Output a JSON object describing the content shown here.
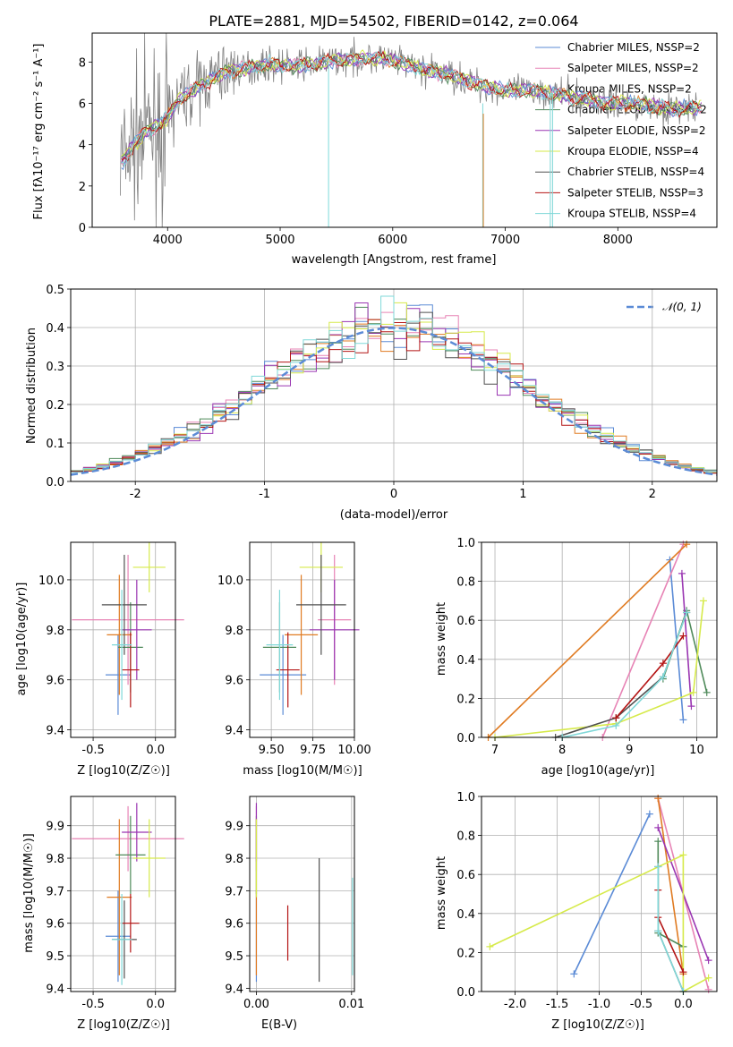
{
  "colors": [
    "#5b8bd6",
    "#e783b5",
    "#e07b22",
    "#4f8a5a",
    "#9a36b2",
    "#d6ea4a",
    "#505050",
    "#b41414",
    "#7fd8d8"
  ],
  "panel1": {
    "title": "PLATE=2881, MJD=54502, FIBERID=0142, z=0.064",
    "xlabel": "wavelength [Angstrom, rest frame]",
    "ylabel": "Flux [fλ10⁻¹⁷ erg cm⁻² s⁻¹ A⁻¹]",
    "xlim": [
      3330,
      8880
    ],
    "ylim": [
      0,
      9.4
    ],
    "xticks": [
      4000,
      5000,
      6000,
      7000,
      8000
    ],
    "yticks": [
      0,
      2,
      4,
      6,
      8
    ],
    "legend": [
      "Chabrier MILES, NSSP=2",
      "Salpeter MILES, NSSP=2",
      "Kroupa MILES, NSSP=2",
      "Chabrier ELODIE, NSSP=2",
      "Salpeter ELODIE, NSSP=2",
      "Kroupa ELODIE, NSSP=4",
      "Chabrier STELIB, NSSP=4",
      "Salpeter STELIB, NSSP=3",
      "Kroupa STELIB, NSSP=4"
    ]
  },
  "panel2": {
    "xlabel": "(data-model)/error",
    "ylabel": "Normed distribution",
    "xlim": [
      -2.5,
      2.5
    ],
    "ylim": [
      0,
      0.5
    ],
    "xticks": [
      -2,
      -1,
      0,
      1,
      2
    ],
    "yticks": [
      0.0,
      0.1,
      0.2,
      0.3,
      0.4,
      0.5
    ],
    "legend": "𝒩(0, 1)"
  },
  "panel3": {
    "xlabel": "Z [log10(Z/Z☉)]",
    "ylabel": "age [log10(age/yr)]",
    "xlim": [
      -0.68,
      0.16
    ],
    "ylim": [
      9.37,
      10.15
    ],
    "xticks": [
      -0.5,
      0.0
    ],
    "yticks": [
      9.4,
      9.6,
      9.8,
      10.0
    ]
  },
  "panel4": {
    "xlabel": "mass [log10(M/M☉)]",
    "xlim": [
      9.37,
      10.0
    ],
    "ylim": [
      9.37,
      10.15
    ],
    "xticks": [
      9.5,
      9.75,
      10.0
    ],
    "yticks": [
      9.4,
      9.6,
      9.8,
      10.0
    ]
  },
  "panel5": {
    "xlabel": "age [log10(age/yr)]",
    "ylabel": "mass weight",
    "xlim": [
      6.8,
      10.3
    ],
    "ylim": [
      0,
      1.0
    ],
    "xticks": [
      7,
      8,
      9,
      10
    ],
    "yticks": [
      0.0,
      0.2,
      0.4,
      0.6,
      0.8,
      1.0
    ]
  },
  "panel6": {
    "xlabel": "Z [log10(Z/Z☉)]",
    "ylabel": "mass [log10(M/M☉)]",
    "xlim": [
      -0.68,
      0.16
    ],
    "ylim": [
      9.39,
      9.99
    ],
    "xticks": [
      -0.5,
      0.0
    ],
    "yticks": [
      9.4,
      9.5,
      9.6,
      9.7,
      9.8,
      9.9
    ]
  },
  "panel7": {
    "xlabel": "E(B-V)",
    "xlim": [
      -0.0007,
      0.0103
    ],
    "ylim": [
      9.39,
      9.99
    ],
    "xticks": [
      0.0,
      0.01
    ],
    "yticks": [
      9.4,
      9.5,
      9.6,
      9.7,
      9.8,
      9.9
    ]
  },
  "panel8": {
    "xlabel": "Z [log10(Z/Z☉)]",
    "ylabel": "mass weight",
    "xlim": [
      -2.4,
      0.4
    ],
    "ylim": [
      0,
      1.0
    ],
    "xticks": [
      -2.0,
      -1.5,
      -1.0,
      -0.5,
      0.0
    ],
    "yticks": [
      0.0,
      0.2,
      0.4,
      0.6,
      0.8,
      1.0
    ]
  },
  "chart_data": [
    {
      "type": "line",
      "title": "PLATE=2881, MJD=54502, FIBERID=0142, z=0.064",
      "xlabel": "wavelength [Angstrom, rest frame]",
      "ylabel": "Flux [fλ10⁻¹⁷ erg cm⁻² s⁻¹ A⁻¹]",
      "xlim": [
        3330,
        8880
      ],
      "ylim": [
        0,
        9.4
      ],
      "legend_position": "right",
      "series_names": [
        "Chabrier MILES, NSSP=2",
        "Salpeter MILES, NSSP=2",
        "Kroupa MILES, NSSP=2",
        "Chabrier ELODIE, NSSP=2",
        "Salpeter ELODIE, NSSP=2",
        "Kroupa ELODIE, NSSP=4",
        "Chabrier STELIB, NSSP=4",
        "Salpeter STELIB, NSSP=3",
        "Kroupa STELIB, NSSP=4"
      ],
      "continuum": {
        "x": [
          3600,
          3700,
          3800,
          3900,
          4000,
          4100,
          4300,
          4500,
          4700,
          4900,
          5100,
          5300,
          5500,
          5800,
          6000,
          6300,
          6500,
          6700,
          7000,
          7300,
          7500,
          7700,
          7900,
          8100,
          8300,
          8500,
          8650
        ],
        "y": [
          3.2,
          4.0,
          4.6,
          4.9,
          5.3,
          6.2,
          6.9,
          7.5,
          7.7,
          7.9,
          7.8,
          7.9,
          8.1,
          8.2,
          8.1,
          7.6,
          7.4,
          7.0,
          6.6,
          6.6,
          6.4,
          6.2,
          6.0,
          6.0,
          5.9,
          5.7,
          5.8
        ]
      }
    },
    {
      "type": "bar",
      "xlabel": "(data-model)/error",
      "ylabel": "Normed distribution",
      "xlim": [
        -2.5,
        2.5
      ],
      "ylim": [
        0,
        0.5
      ],
      "bin_width": 0.1,
      "gaussian": {
        "name": "𝒩(0, 1)",
        "mean": 0,
        "sigma": 1
      }
    },
    {
      "type": "scatter",
      "xlabel": "Z [log10(Z/Z☉)]",
      "ylabel": "age [log10(age/yr)]",
      "points": [
        {
          "x": -0.3,
          "y": 9.62,
          "xerr": 0.1,
          "yerr": 0.16
        },
        {
          "x": -0.22,
          "y": 9.84,
          "xerr": 0.45,
          "yerr": 0.26
        },
        {
          "x": -0.29,
          "y": 9.78,
          "xerr": 0.1,
          "yerr": 0.24
        },
        {
          "x": -0.2,
          "y": 9.73,
          "xerr": 0.1,
          "yerr": 0.18
        },
        {
          "x": -0.15,
          "y": 9.8,
          "xerr": 0.12,
          "yerr": 0.2
        },
        {
          "x": -0.05,
          "y": 10.05,
          "xerr": 0.13,
          "yerr": 0.1
        },
        {
          "x": -0.25,
          "y": 9.9,
          "xerr": 0.18,
          "yerr": 0.2
        },
        {
          "x": -0.2,
          "y": 9.64,
          "xerr": 0.07,
          "yerr": 0.15
        },
        {
          "x": -0.27,
          "y": 9.74,
          "xerr": 0.08,
          "yerr": 0.22
        }
      ]
    },
    {
      "type": "scatter",
      "xlabel": "mass [log10(M/M☉)]",
      "points": [
        {
          "x": 9.57,
          "y": 9.62,
          "xerr": 0.14,
          "yerr": 0.16
        },
        {
          "x": 9.88,
          "y": 9.84,
          "xerr": 0.1,
          "yerr": 0.26
        },
        {
          "x": 9.68,
          "y": 9.78,
          "xerr": 0.1,
          "yerr": 0.24
        },
        {
          "x": 9.55,
          "y": 9.73,
          "xerr": 0.1,
          "yerr": 0.18
        },
        {
          "x": 9.88,
          "y": 9.8,
          "xerr": 0.15,
          "yerr": 0.2
        },
        {
          "x": 9.8,
          "y": 10.05,
          "xerr": 0.13,
          "yerr": 0.1
        },
        {
          "x": 9.8,
          "y": 9.9,
          "xerr": 0.15,
          "yerr": 0.2
        },
        {
          "x": 9.6,
          "y": 9.64,
          "xerr": 0.07,
          "yerr": 0.15
        },
        {
          "x": 9.55,
          "y": 9.74,
          "xerr": 0.08,
          "yerr": 0.22
        }
      ]
    },
    {
      "type": "line",
      "xlabel": "age [log10(age/yr)]",
      "ylabel": "mass weight",
      "series": [
        {
          "x": [
            9.6,
            9.8
          ],
          "y": [
            0.91,
            0.09
          ]
        },
        {
          "x": [
            8.6,
            9.8
          ],
          "y": [
            0.0,
            0.99
          ]
        },
        {
          "x": [
            6.9,
            9.85
          ],
          "y": [
            0.0,
            0.99
          ]
        },
        {
          "x": [
            9.5,
            9.85,
            10.15
          ],
          "y": [
            0.3,
            0.65,
            0.23
          ]
        },
        {
          "x": [
            9.78,
            9.92
          ],
          "y": [
            0.84,
            0.16
          ]
        },
        {
          "x": [
            7.0,
            8.8,
            9.95,
            10.1
          ],
          "y": [
            0.0,
            0.07,
            0.23,
            0.7
          ]
        },
        {
          "x": [
            7.9,
            8.8,
            9.5,
            9.85
          ],
          "y": [
            0.0,
            0.1,
            0.31,
            0.64
          ]
        },
        {
          "x": [
            8.8,
            9.5,
            9.8
          ],
          "y": [
            0.1,
            0.38,
            0.52
          ]
        },
        {
          "x": [
            8.0,
            8.8,
            9.5,
            9.85
          ],
          "y": [
            0.0,
            0.06,
            0.31,
            0.64
          ]
        }
      ]
    },
    {
      "type": "scatter",
      "xlabel": "Z [log10(Z/Z☉)]",
      "ylabel": "mass [log10(M/M☉)]",
      "points": [
        {
          "x": -0.3,
          "y": 9.56,
          "xerr": 0.1,
          "yerr": 0.14
        },
        {
          "x": -0.22,
          "y": 9.86,
          "xerr": 0.45,
          "yerr": 0.1
        },
        {
          "x": -0.29,
          "y": 9.68,
          "xerr": 0.1,
          "yerr": 0.24
        },
        {
          "x": -0.2,
          "y": 9.81,
          "xerr": 0.12,
          "yerr": 0.12
        },
        {
          "x": -0.15,
          "y": 9.88,
          "xerr": 0.12,
          "yerr": 0.09
        },
        {
          "x": -0.05,
          "y": 9.8,
          "xerr": 0.13,
          "yerr": 0.12
        },
        {
          "x": -0.25,
          "y": 9.55,
          "xerr": 0.1,
          "yerr": 0.12
        },
        {
          "x": -0.2,
          "y": 9.6,
          "xerr": 0.07,
          "yerr": 0.09
        },
        {
          "x": -0.27,
          "y": 9.55,
          "xerr": 0.08,
          "yerr": 0.14
        }
      ]
    },
    {
      "type": "scatter",
      "xlabel": "E(B-V)",
      "points": [
        {
          "x": 0.0,
          "y": 9.56,
          "yerr": 0.14
        },
        {
          "x": 0.0,
          "y": 9.86,
          "yerr": 0.1
        },
        {
          "x": 0.0,
          "y": 9.68,
          "yerr": 0.24
        },
        {
          "x": 0.0,
          "y": 9.81,
          "yerr": 0.12
        },
        {
          "x": 0.0,
          "y": 9.88,
          "yerr": 0.09
        },
        {
          "x": 0.0,
          "y": 9.8,
          "yerr": 0.12
        },
        {
          "x": 0.0066,
          "y": 9.61,
          "yerr": 0.19
        },
        {
          "x": 0.0033,
          "y": 9.57,
          "yerr": 0.085
        },
        {
          "x": 0.0101,
          "y": 9.59,
          "yerr": 0.15
        }
      ]
    },
    {
      "type": "line",
      "xlabel": "Z [log10(Z/Z☉)]",
      "ylabel": "mass weight",
      "series": [
        {
          "x": [
            -1.3,
            -0.4
          ],
          "y": [
            0.09,
            0.91
          ]
        },
        {
          "x": [
            -0.3,
            0.3
          ],
          "y": [
            0.99,
            0.01
          ]
        },
        {
          "x": [
            -0.3,
            0.0
          ],
          "y": [
            0.99,
            0.09
          ]
        },
        {
          "x": [
            -0.3,
            -0.3,
            0.0
          ],
          "y": [
            0.77,
            0.3,
            0.23
          ]
        },
        {
          "x": [
            -0.3,
            0.3
          ],
          "y": [
            0.84,
            0.16
          ]
        },
        {
          "x": [
            -2.3,
            0.0,
            0.0,
            0.3
          ],
          "y": [
            0.23,
            0.7,
            0.0,
            0.07
          ]
        },
        {
          "x": [
            -0.3,
            -0.3,
            0.0
          ],
          "y": [
            0.64,
            0.31,
            0.0
          ]
        },
        {
          "x": [
            -0.3,
            -0.3,
            0.0
          ],
          "y": [
            0.52,
            0.38,
            0.1
          ]
        },
        {
          "x": [
            -0.3,
            -0.3,
            0.0
          ],
          "y": [
            0.64,
            0.31,
            0.0
          ]
        }
      ]
    }
  ]
}
